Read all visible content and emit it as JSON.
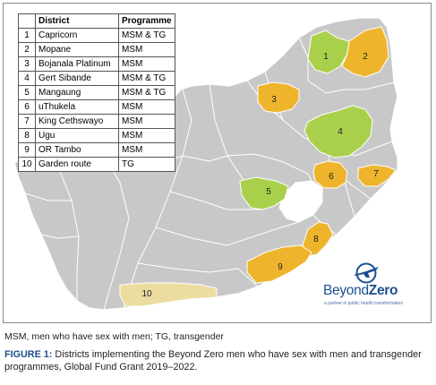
{
  "table": {
    "headers": {
      "district": "District",
      "programme": "Programme"
    },
    "rows": [
      {
        "num": "1",
        "district": "Capricorn",
        "programme": "MSM & TG"
      },
      {
        "num": "2",
        "district": "Mopane",
        "programme": "MSM"
      },
      {
        "num": "3",
        "district": "Bojanala Platinum",
        "programme": "MSM"
      },
      {
        "num": "4",
        "district": "Gert Sibande",
        "programme": "MSM & TG"
      },
      {
        "num": "5",
        "district": "Mangaung",
        "programme": "MSM & TG"
      },
      {
        "num": "6",
        "district": "uThukela",
        "programme": "MSM"
      },
      {
        "num": "7",
        "district": "King Cethswayo",
        "programme": "MSM"
      },
      {
        "num": "8",
        "district": "Ugu",
        "programme": "MSM"
      },
      {
        "num": "9",
        "district": "OR Tambo",
        "programme": "MSM"
      },
      {
        "num": "10",
        "district": "Garden route",
        "programme": "TG"
      }
    ]
  },
  "map": {
    "colors": {
      "msm_tg": "#a9d04a",
      "msm": "#eeb52c",
      "tg": "#ecdca0",
      "base": "#c8c8c8",
      "boundary": "#ffffff"
    },
    "district_labels": {
      "d1": "1",
      "d2": "2",
      "d3": "3",
      "d4": "4",
      "d5": "5",
      "d6": "6",
      "d7": "7",
      "d8": "8",
      "d9": "9",
      "d10": "10"
    }
  },
  "logo": {
    "name_part1": "Beyond",
    "name_part2": "Zero",
    "tagline": "a partner in public health transformation",
    "icon": "plane-icon"
  },
  "footnote": "MSM, men who have sex with men; TG, transgender",
  "caption": {
    "label": "FIGURE 1:",
    "text": " Districts implementing the Beyond Zero men who have sex with men and transgender programmes, Global Fund Grant 2019–2022."
  }
}
